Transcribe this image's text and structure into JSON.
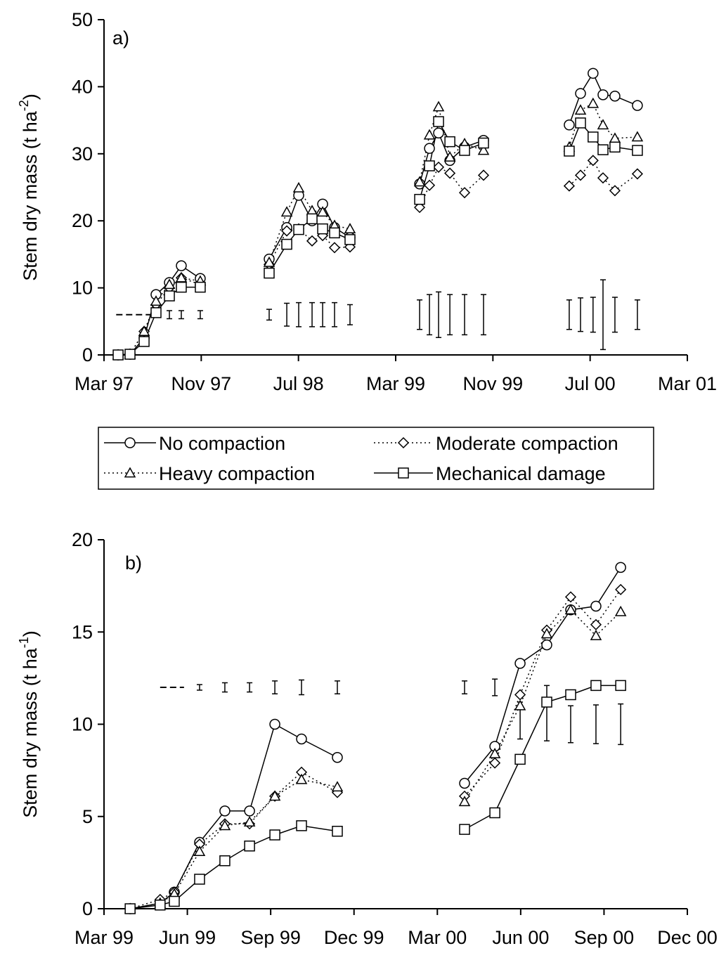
{
  "chart_data": [
    {
      "type": "line",
      "panel_label": "a)",
      "ylabel": [
        "Stem dry mass (t ha",
        "-2",
        ")"
      ],
      "xlim": [
        2,
        50
      ],
      "xticks": [
        {
          "value": 2,
          "label": "Mar 97"
        },
        {
          "value": 10,
          "label": "Nov 97"
        },
        {
          "value": 18,
          "label": "Jul 98"
        },
        {
          "value": 26,
          "label": "Mar 99"
        },
        {
          "value": 34,
          "label": "Nov 99"
        },
        {
          "value": 42,
          "label": "Jul 00"
        },
        {
          "value": 50,
          "label": "Mar 01"
        }
      ],
      "ylim": [
        0,
        50
      ],
      "yticks": [
        0,
        10,
        20,
        30,
        40,
        50
      ],
      "x": [
        3.16,
        4.14,
        5.3,
        6.28,
        7.38,
        8.36,
        9.92,
        null,
        15.59,
        17.04,
        18.02,
        19.12,
        19.99,
        20.97,
        22.24,
        null,
        27.97,
        28.78,
        29.53,
        30.46,
        31.67,
        33.23,
        null,
        40.28,
        41.21,
        42.24,
        43.06,
        44.04,
        45.89
      ],
      "series": [
        {
          "name": "No compaction",
          "color": "#000000",
          "marker": "circle",
          "dash": false,
          "values": [
            0,
            0.1,
            2.5,
            9,
            10.8,
            13.3,
            11.4,
            null,
            14.3,
            19,
            23.8,
            20,
            22.5,
            19,
            17.5,
            null,
            25.5,
            30.8,
            33.1,
            29,
            31,
            32,
            null,
            34.3,
            39,
            42,
            38.8,
            38.6,
            37.2
          ]
        },
        {
          "name": "Moderate compaction",
          "color": "#000000",
          "marker": "diamond",
          "dash": true,
          "values": [
            0,
            0.1,
            3.5,
            7.5,
            10,
            11.5,
            10.5,
            null,
            13.5,
            18.5,
            18.8,
            17,
            17.8,
            16,
            16.1,
            null,
            22,
            25.3,
            28,
            27.1,
            24.2,
            26.8,
            null,
            25.2,
            26.8,
            29,
            26.4,
            24.5,
            27
          ]
        },
        {
          "name": "Heavy compaction",
          "color": "#000000",
          "marker": "triangle",
          "dash": true,
          "values": [
            0,
            0.1,
            3.5,
            8,
            10.5,
            11.5,
            11,
            null,
            13.8,
            21.3,
            24.9,
            21.5,
            21.3,
            19.3,
            18.8,
            null,
            25.8,
            32.8,
            37,
            29.5,
            31.5,
            30.5,
            null,
            31,
            36.5,
            37.5,
            34.3,
            32.3,
            32.5
          ]
        },
        {
          "name": "Mechanical damage",
          "color": "#000000",
          "marker": "square",
          "dash": false,
          "values": [
            0,
            0.1,
            2,
            6.3,
            8.8,
            10.1,
            10.1,
            null,
            12.2,
            16.5,
            18.7,
            20.3,
            18.8,
            18.2,
            17.2,
            null,
            23.2,
            28.2,
            34.8,
            31.8,
            30.5,
            31.6,
            null,
            30.4,
            34.6,
            32.5,
            30.6,
            31,
            30.5
          ]
        }
      ],
      "error_bars": {
        "x": [
          7.38,
          8.36,
          9.92,
          15.59,
          17.04,
          18.02,
          19.12,
          19.99,
          20.97,
          22.24,
          27.97,
          28.78,
          29.53,
          30.46,
          31.67,
          33.23,
          40.28,
          41.21,
          42.24,
          43.06,
          44.04,
          45.89
        ],
        "values": [
          6,
          6,
          6,
          6,
          6,
          6,
          6,
          6,
          6,
          6,
          6,
          6,
          6,
          6,
          6,
          6,
          6,
          6,
          6,
          6,
          6,
          6
        ],
        "errors": [
          0.6,
          0.6,
          0.6,
          0.8,
          1.7,
          1.8,
          1.8,
          1.8,
          1.8,
          1.5,
          2.2,
          3,
          3.4,
          3,
          3,
          3,
          2.2,
          2.5,
          2.6,
          5.2,
          2.6,
          2.2
        ]
      },
      "dash_line": {
        "x": [
          3,
          6.45
        ],
        "y": 6
      }
    },
    {
      "type": "line",
      "panel_label": "b)",
      "ylabel": [
        "Stem dry mass (t ha",
        "-1",
        ")"
      ],
      "xlim": [
        26,
        47
      ],
      "xticks": [
        {
          "value": 26,
          "label": "Mar 99"
        },
        {
          "value": 29,
          "label": "Jun 99"
        },
        {
          "value": 32,
          "label": "Sep 99"
        },
        {
          "value": 35,
          "label": "Dec 99"
        },
        {
          "value": 38,
          "label": "Mar 00"
        },
        {
          "value": 41,
          "label": "Jun 00"
        },
        {
          "value": 44,
          "label": "Sep 00"
        },
        {
          "value": 47,
          "label": "Dec 00"
        }
      ],
      "ylim": [
        0,
        20
      ],
      "yticks": [
        0,
        5,
        10,
        15,
        20
      ],
      "x": [
        26.94,
        28.02,
        28.53,
        29.44,
        30.35,
        31.24,
        32.15,
        33.11,
        34.4,
        null,
        38.98,
        40.07,
        40.98,
        41.94,
        42.8,
        43.71,
        44.6
      ],
      "series": [
        {
          "color": "#000000",
          "marker": "circle",
          "dash": false,
          "values": [
            0,
            0.3,
            0.9,
            3.6,
            5.3,
            5.3,
            10,
            9.2,
            8.2,
            null,
            6.8,
            8.8,
            13.3,
            14.3,
            16.2,
            16.4,
            18.5
          ]
        },
        {
          "color": "#000000",
          "marker": "diamond",
          "dash": true,
          "values": [
            0,
            0.5,
            0.9,
            3.5,
            4.6,
            4.6,
            6.1,
            7.4,
            6.3,
            null,
            6.1,
            7.9,
            11.6,
            15.1,
            16.9,
            15.4,
            17.3
          ]
        },
        {
          "color": "#000000",
          "marker": "triangle",
          "dash": true,
          "values": [
            0,
            0.3,
            0.8,
            3.1,
            4.5,
            4.7,
            6.1,
            7,
            6.6,
            null,
            5.8,
            8.4,
            11,
            14.9,
            16.2,
            14.8,
            16.1
          ]
        },
        {
          "color": "#000000",
          "marker": "square",
          "dash": false,
          "values": [
            0,
            0.2,
            0.4,
            1.6,
            2.6,
            3.4,
            4,
            4.5,
            4.2,
            null,
            4.3,
            5.2,
            8.1,
            11.2,
            11.6,
            12.1,
            12.1
          ]
        }
      ],
      "error_bars": {
        "x": [
          29.44,
          30.35,
          31.24,
          32.15,
          33.11,
          34.4,
          38.98,
          40.07,
          40.98,
          41.94,
          42.8,
          43.71,
          44.6
        ],
        "values": [
          12,
          12,
          12,
          12,
          12,
          12,
          12,
          12,
          10.2,
          10.6,
          10,
          10,
          10
        ],
        "errors": [
          0.15,
          0.25,
          0.25,
          0.35,
          0.4,
          0.35,
          0.35,
          0.45,
          1,
          1.5,
          1,
          1.05,
          1.1
        ]
      },
      "dash_line": {
        "x": [
          28.02,
          28.88
        ],
        "y": 12
      }
    }
  ]
}
